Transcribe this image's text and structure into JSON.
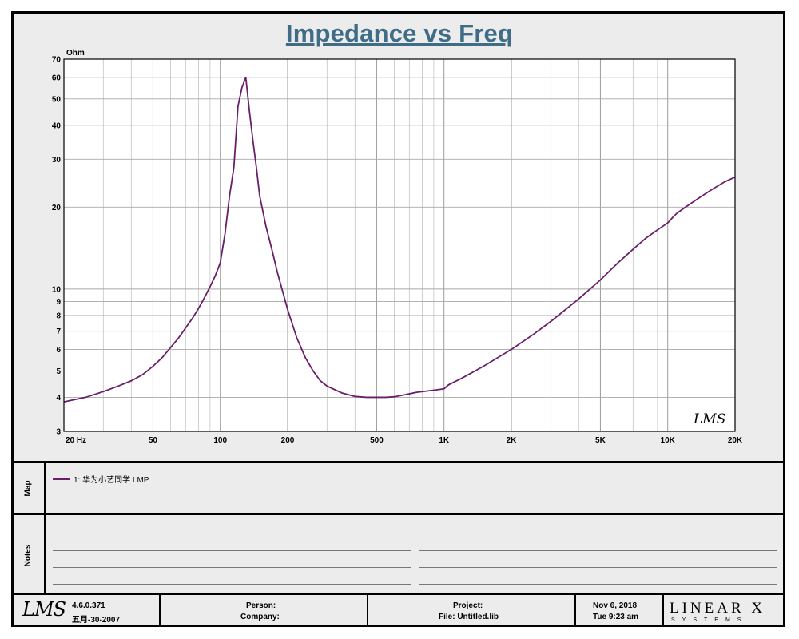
{
  "chart_data": {
    "type": "line",
    "title": "Impedance vs Freq",
    "ylabel": "Ohm",
    "xscale": "log",
    "yscale": "log",
    "xlim": [
      20,
      20000
    ],
    "ylim": [
      3,
      70
    ],
    "grid": true,
    "x_ticks": [
      20,
      50,
      100,
      200,
      500,
      1000,
      2000,
      5000,
      10000,
      20000
    ],
    "x_tick_labels": [
      "20  Hz",
      "50",
      "100",
      "200",
      "500",
      "1K",
      "2K",
      "5K",
      "10K",
      "20K"
    ],
    "y_ticks": [
      3,
      4,
      5,
      6,
      7,
      8,
      9,
      10,
      20,
      30,
      40,
      50,
      60,
      70
    ],
    "y_tick_labels": [
      "3",
      "4",
      "5",
      "6",
      "7",
      "8",
      "9",
      "10",
      "20",
      "30",
      "40",
      "50",
      "60",
      "70"
    ],
    "watermark": "LMS",
    "series": [
      {
        "name": "1: 华为小艺同学 LMP",
        "color": "#6a1f6a",
        "x": [
          20,
          25,
          30,
          35,
          40,
          45,
          50,
          55,
          60,
          65,
          70,
          75,
          80,
          85,
          90,
          95,
          100,
          105,
          110,
          115,
          120,
          125,
          130,
          135,
          140,
          145,
          150,
          160,
          170,
          180,
          190,
          200,
          220,
          240,
          260,
          280,
          300,
          350,
          400,
          450,
          500,
          550,
          600,
          650,
          700,
          750,
          800,
          900,
          1000,
          1050,
          1200,
          1500,
          2000,
          2500,
          3000,
          4000,
          5000,
          6000,
          7000,
          8000,
          9000,
          10000,
          10500,
          11000,
          12000,
          14000,
          16000,
          18000,
          20000
        ],
        "y": [
          3.85,
          4.0,
          4.2,
          4.4,
          4.6,
          4.85,
          5.2,
          5.6,
          6.1,
          6.6,
          7.2,
          7.8,
          8.5,
          9.3,
          10.2,
          11.2,
          12.5,
          16,
          22,
          28,
          47,
          55,
          60,
          45,
          35,
          28,
          22,
          17,
          14,
          11.5,
          9.8,
          8.4,
          6.6,
          5.6,
          5.0,
          4.6,
          4.4,
          4.15,
          4.03,
          4.0,
          4.0,
          4.0,
          4.02,
          4.07,
          4.12,
          4.17,
          4.2,
          4.25,
          4.3,
          4.45,
          4.7,
          5.2,
          6.0,
          6.8,
          7.6,
          9.2,
          10.8,
          12.5,
          14.0,
          15.4,
          16.5,
          17.5,
          18.3,
          19.0,
          20.0,
          21.8,
          23.4,
          24.8,
          25.8
        ]
      }
    ]
  },
  "map": {
    "label": "Map",
    "entry": "1: 华为小艺同学 LMP"
  },
  "notes": {
    "label": "Notes"
  },
  "footer": {
    "logo": "LMS",
    "version": "4.6.0.371",
    "build_date": "五月-30-2007",
    "person_label": "Person:",
    "company_label": "Company:",
    "project_label": "Project:",
    "file_label": "File: Untitled.lib",
    "date": "Nov  6, 2018",
    "time": "Tue  9:23 am",
    "brand": "LINEAR X",
    "brand_sub": "SYSTEMS"
  }
}
